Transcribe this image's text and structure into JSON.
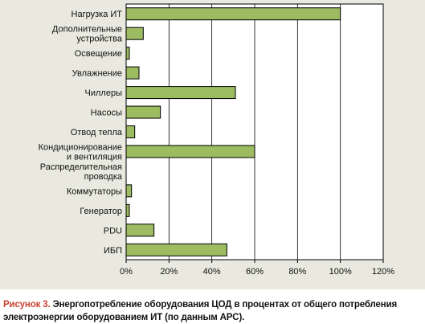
{
  "chart_data": {
    "type": "bar",
    "orientation": "horizontal",
    "categories": [
      [
        "Нагрузка ИТ"
      ],
      [
        "Дополнительные",
        "устройства"
      ],
      [
        "Освещение"
      ],
      [
        "Увлажнение"
      ],
      [
        "Чиллеры"
      ],
      [
        "Насосы"
      ],
      [
        "Отвод тепла"
      ],
      [
        "Кондиционирование",
        "и вентиляция"
      ],
      [
        "Распределительная",
        "проводка"
      ],
      [
        "Коммутаторы"
      ],
      [
        "Генератор"
      ],
      [
        "PDU"
      ],
      [
        "ИБП"
      ]
    ],
    "values": [
      100,
      8,
      1.5,
      6,
      51,
      16,
      4,
      60,
      0,
      2.5,
      1.5,
      13,
      47
    ],
    "xlim": [
      0,
      120
    ],
    "xticks": [
      0,
      20,
      40,
      60,
      80,
      100,
      120
    ],
    "tick_labels": [
      "0%",
      "20%",
      "40%",
      "60%",
      "80%",
      "100%",
      "120%"
    ],
    "grid": "vertical",
    "colors": {
      "bar_fill": "#9dbb61",
      "bar_stroke": "#000000",
      "plot_bg": "#ffffff",
      "panel_bg": "#e9e9df"
    }
  },
  "caption": {
    "label": "Рисунок 3.",
    "text": "Энергопотребление оборудования ЦОД в процентах от общего потребления электроэнергии оборудованием ИТ (по данным APC)."
  }
}
